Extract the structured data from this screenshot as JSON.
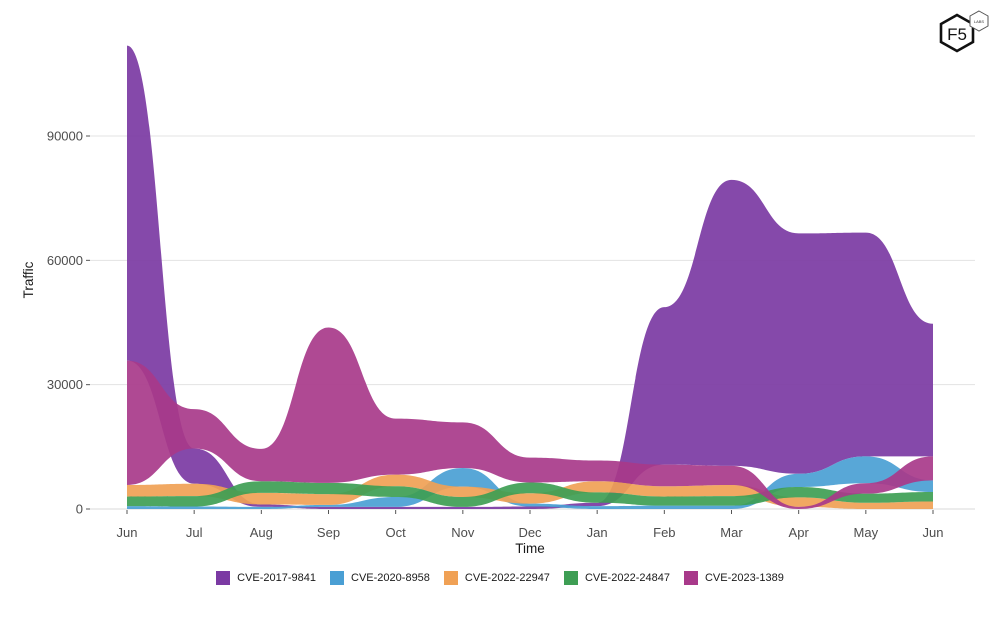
{
  "chart_data": {
    "type": "area",
    "subtype": "ranked-stacked-smoothed",
    "title": "",
    "xlabel": "Time",
    "ylabel": "Traffic",
    "x": [
      "Jun",
      "Jul",
      "Aug",
      "Sep",
      "Oct",
      "Nov",
      "Dec",
      "Jan",
      "Feb",
      "Mar",
      "Apr",
      "May",
      "Jun"
    ],
    "yticks": [
      0,
      30000,
      60000,
      90000
    ],
    "ytick_labels": [
      "0",
      "30000",
      "60000",
      "90000"
    ],
    "ylim": [
      0,
      113000
    ],
    "grid": true,
    "legend_position": "bottom",
    "series": [
      {
        "name": "CVE-2017-9841",
        "color": "#7B3AA3",
        "values": [
          76000,
          8500,
          600,
          500,
          500,
          500,
          600,
          800,
          38000,
          69000,
          58000,
          54000,
          32000
        ]
      },
      {
        "name": "CVE-2020-8958",
        "color": "#4A9FD4",
        "values": [
          700,
          600,
          500,
          500,
          2400,
          4500,
          700,
          700,
          800,
          800,
          3200,
          6500,
          2800
        ]
      },
      {
        "name": "CVE-2022-22947",
        "color": "#F0A155",
        "values": [
          2800,
          3000,
          2800,
          2600,
          2800,
          2500,
          2500,
          2700,
          2500,
          2700,
          2300,
          1500,
          1800
        ]
      },
      {
        "name": "CVE-2022-24847",
        "color": "#3E9E54",
        "values": [
          2300,
          2500,
          2800,
          2700,
          2600,
          2400,
          2600,
          2500,
          2200,
          2300,
          2500,
          2200,
          2300
        ]
      },
      {
        "name": "CVE-2023-1389",
        "color": "#A8398A",
        "values": [
          30000,
          9500,
          7800,
          37500,
          13500,
          11000,
          6000,
          5000,
          5200,
          4600,
          500,
          2500,
          5800
        ]
      }
    ]
  },
  "legend": {
    "items": [
      {
        "label": "CVE-2017-9841",
        "color": "#7B3AA3"
      },
      {
        "label": "CVE-2020-8958",
        "color": "#4A9FD4"
      },
      {
        "label": "CVE-2022-22947",
        "color": "#F0A155"
      },
      {
        "label": "CVE-2022-24847",
        "color": "#3E9E54"
      },
      {
        "label": "CVE-2023-1389",
        "color": "#A8398A"
      }
    ]
  },
  "logo": {
    "main": "F5",
    "badge": "LABS"
  }
}
